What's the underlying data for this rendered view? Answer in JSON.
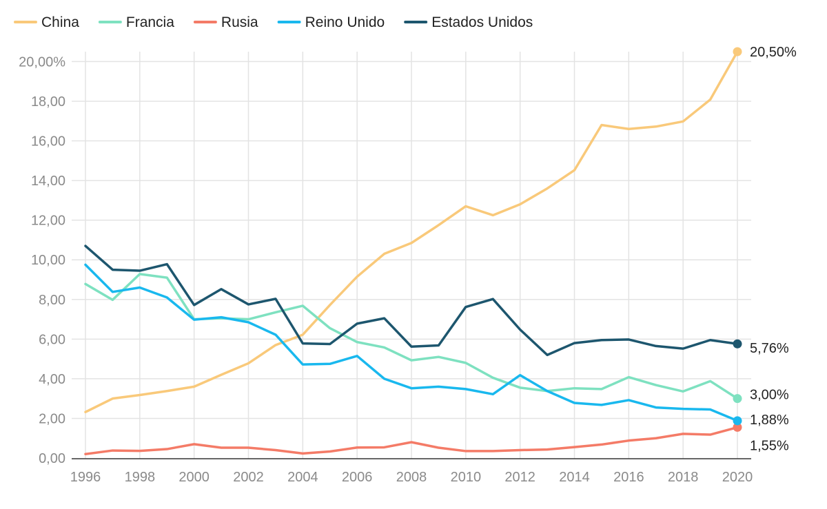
{
  "chart_data": {
    "type": "line",
    "title": "",
    "xlabel": "",
    "ylabel": "",
    "x": [
      1996,
      1997,
      1998,
      1999,
      2000,
      2001,
      2002,
      2003,
      2004,
      2005,
      2006,
      2007,
      2008,
      2009,
      2010,
      2011,
      2012,
      2013,
      2014,
      2015,
      2016,
      2017,
      2018,
      2019,
      2020
    ],
    "xlim": [
      1996,
      2020
    ],
    "ylim": [
      0,
      20.5
    ],
    "x_ticks": [
      "1996",
      "1998",
      "2000",
      "2002",
      "2004",
      "2006",
      "2008",
      "2010",
      "2012",
      "2014",
      "2016",
      "2018",
      "2020"
    ],
    "y_ticks": [
      {
        "value": 0,
        "label": "0,00"
      },
      {
        "value": 2,
        "label": "2,00"
      },
      {
        "value": 4,
        "label": "4,00"
      },
      {
        "value": 6,
        "label": "6,00"
      },
      {
        "value": 8,
        "label": "8,00"
      },
      {
        "value": 10,
        "label": "10,00"
      },
      {
        "value": 12,
        "label": "12,00"
      },
      {
        "value": 14,
        "label": "14,00"
      },
      {
        "value": 16,
        "label": "16,00"
      },
      {
        "value": 18,
        "label": "18,00"
      },
      {
        "value": 20,
        "label": "20,00%"
      }
    ],
    "grid": true,
    "legend_position": "top-left",
    "series": [
      {
        "name": "China",
        "color": "#f9c97a",
        "end_label": "20,50%",
        "values": [
          2.32,
          3.0,
          3.18,
          3.38,
          3.6,
          4.2,
          4.78,
          5.7,
          6.22,
          7.72,
          9.15,
          10.3,
          10.85,
          11.75,
          12.7,
          12.25,
          12.8,
          13.6,
          14.52,
          16.8,
          16.6,
          16.72,
          16.98,
          18.08,
          20.5
        ]
      },
      {
        "name": "Francia",
        "color": "#7ee1c0",
        "end_label": "3,00%",
        "values": [
          8.78,
          7.98,
          9.28,
          9.1,
          7.0,
          7.05,
          7.0,
          7.35,
          7.68,
          6.55,
          5.85,
          5.58,
          4.93,
          5.1,
          4.8,
          4.05,
          3.55,
          3.38,
          3.52,
          3.48,
          4.08,
          3.68,
          3.36,
          3.88,
          3.0
        ]
      },
      {
        "name": "Rusia",
        "color": "#f47b67",
        "end_label": "1,55%",
        "values": [
          0.2,
          0.38,
          0.36,
          0.45,
          0.7,
          0.52,
          0.52,
          0.4,
          0.23,
          0.33,
          0.53,
          0.54,
          0.8,
          0.52,
          0.35,
          0.35,
          0.4,
          0.43,
          0.55,
          0.68,
          0.88,
          1.0,
          1.22,
          1.18,
          1.55
        ]
      },
      {
        "name": "Reino Unido",
        "color": "#19b8ee",
        "end_label": "1,88%",
        "values": [
          9.75,
          8.38,
          8.6,
          8.1,
          6.98,
          7.1,
          6.85,
          6.22,
          4.72,
          4.75,
          5.15,
          4.0,
          3.52,
          3.6,
          3.48,
          3.22,
          4.18,
          3.38,
          2.78,
          2.68,
          2.92,
          2.55,
          2.48,
          2.45,
          1.88
        ]
      },
      {
        "name": "Estados Unidos",
        "color": "#1d566e",
        "end_label": "5,76%",
        "values": [
          10.7,
          9.5,
          9.45,
          9.78,
          7.72,
          8.52,
          7.75,
          8.03,
          5.78,
          5.75,
          6.78,
          7.05,
          5.62,
          5.68,
          7.62,
          8.02,
          6.48,
          5.2,
          5.8,
          5.95,
          5.98,
          5.65,
          5.52,
          5.95,
          5.76
        ]
      }
    ]
  }
}
